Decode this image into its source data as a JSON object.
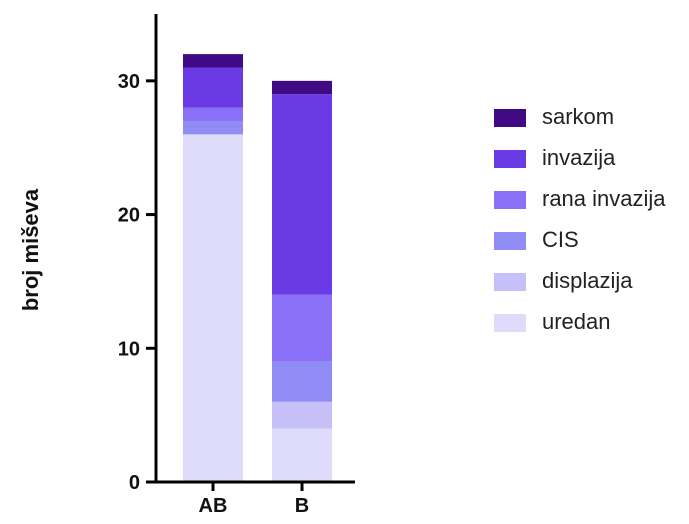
{
  "chart_data": {
    "type": "bar",
    "stacked": true,
    "categories": [
      "AB",
      "B"
    ],
    "ylabel": "broj miševa",
    "xlabel": "",
    "ylim": [
      0,
      35
    ],
    "yticks": [
      "0",
      "10",
      "20",
      "30"
    ],
    "grid": false,
    "legend_position": "right",
    "series": [
      {
        "name": "uredan",
        "color": "#dedcfa",
        "values": [
          26,
          4
        ]
      },
      {
        "name": "displazija",
        "color": "#c7c0f8",
        "values": [
          0,
          2
        ]
      },
      {
        "name": "CIS",
        "color": "#8f8cf5",
        "values": [
          1,
          3
        ]
      },
      {
        "name": "rana invazija",
        "color": "#8a70f6",
        "values": [
          1,
          5
        ]
      },
      {
        "name": "invazija",
        "color": "#6a3ae4",
        "values": [
          3,
          15
        ]
      },
      {
        "name": "sarkom",
        "color": "#3f0a84",
        "values": [
          1,
          1
        ]
      }
    ]
  },
  "legend": {
    "items": [
      {
        "label": "sarkom",
        "color": "#3f0a84"
      },
      {
        "label": "invazija",
        "color": "#6a3ae4"
      },
      {
        "label": "rana invazija",
        "color": "#8a70f6"
      },
      {
        "label": "CIS",
        "color": "#8f8cf5"
      },
      {
        "label": "displazija",
        "color": "#c7c0f8"
      },
      {
        "label": "uredan",
        "color": "#dedcfa"
      }
    ]
  }
}
